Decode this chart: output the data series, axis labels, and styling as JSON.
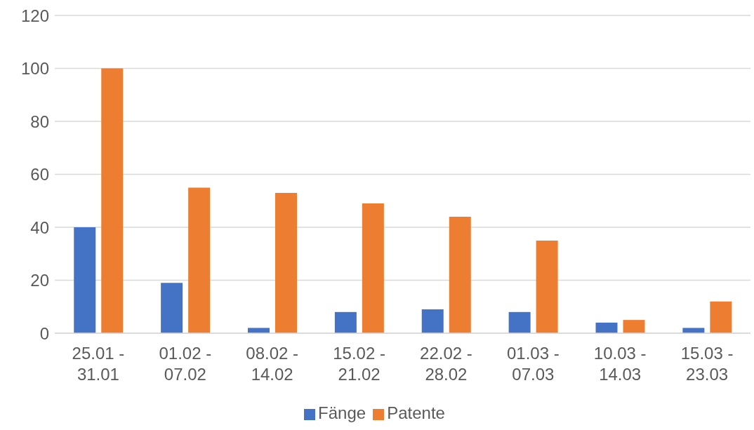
{
  "chart_data": {
    "type": "bar",
    "categories": [
      "25.01 - 31.01",
      "01.02 - 07.02",
      "08.02 - 14.02",
      "15.02 - 21.02",
      "22.02 - 28.02",
      "01.03 - 07.03",
      "10.03 - 14.03",
      "15.03 - 23.03"
    ],
    "series": [
      {
        "name": "Fänge",
        "color": "#4472c4",
        "values": [
          40,
          19,
          2,
          8,
          9,
          8,
          4,
          2
        ]
      },
      {
        "name": "Patente",
        "color": "#ed7d31",
        "values": [
          100,
          55,
          53,
          49,
          44,
          35,
          5,
          12
        ]
      }
    ],
    "ylim": [
      0,
      120
    ],
    "yticks": [
      0,
      20,
      40,
      60,
      80,
      100,
      120
    ],
    "grid": "y",
    "legend": "bottom"
  }
}
